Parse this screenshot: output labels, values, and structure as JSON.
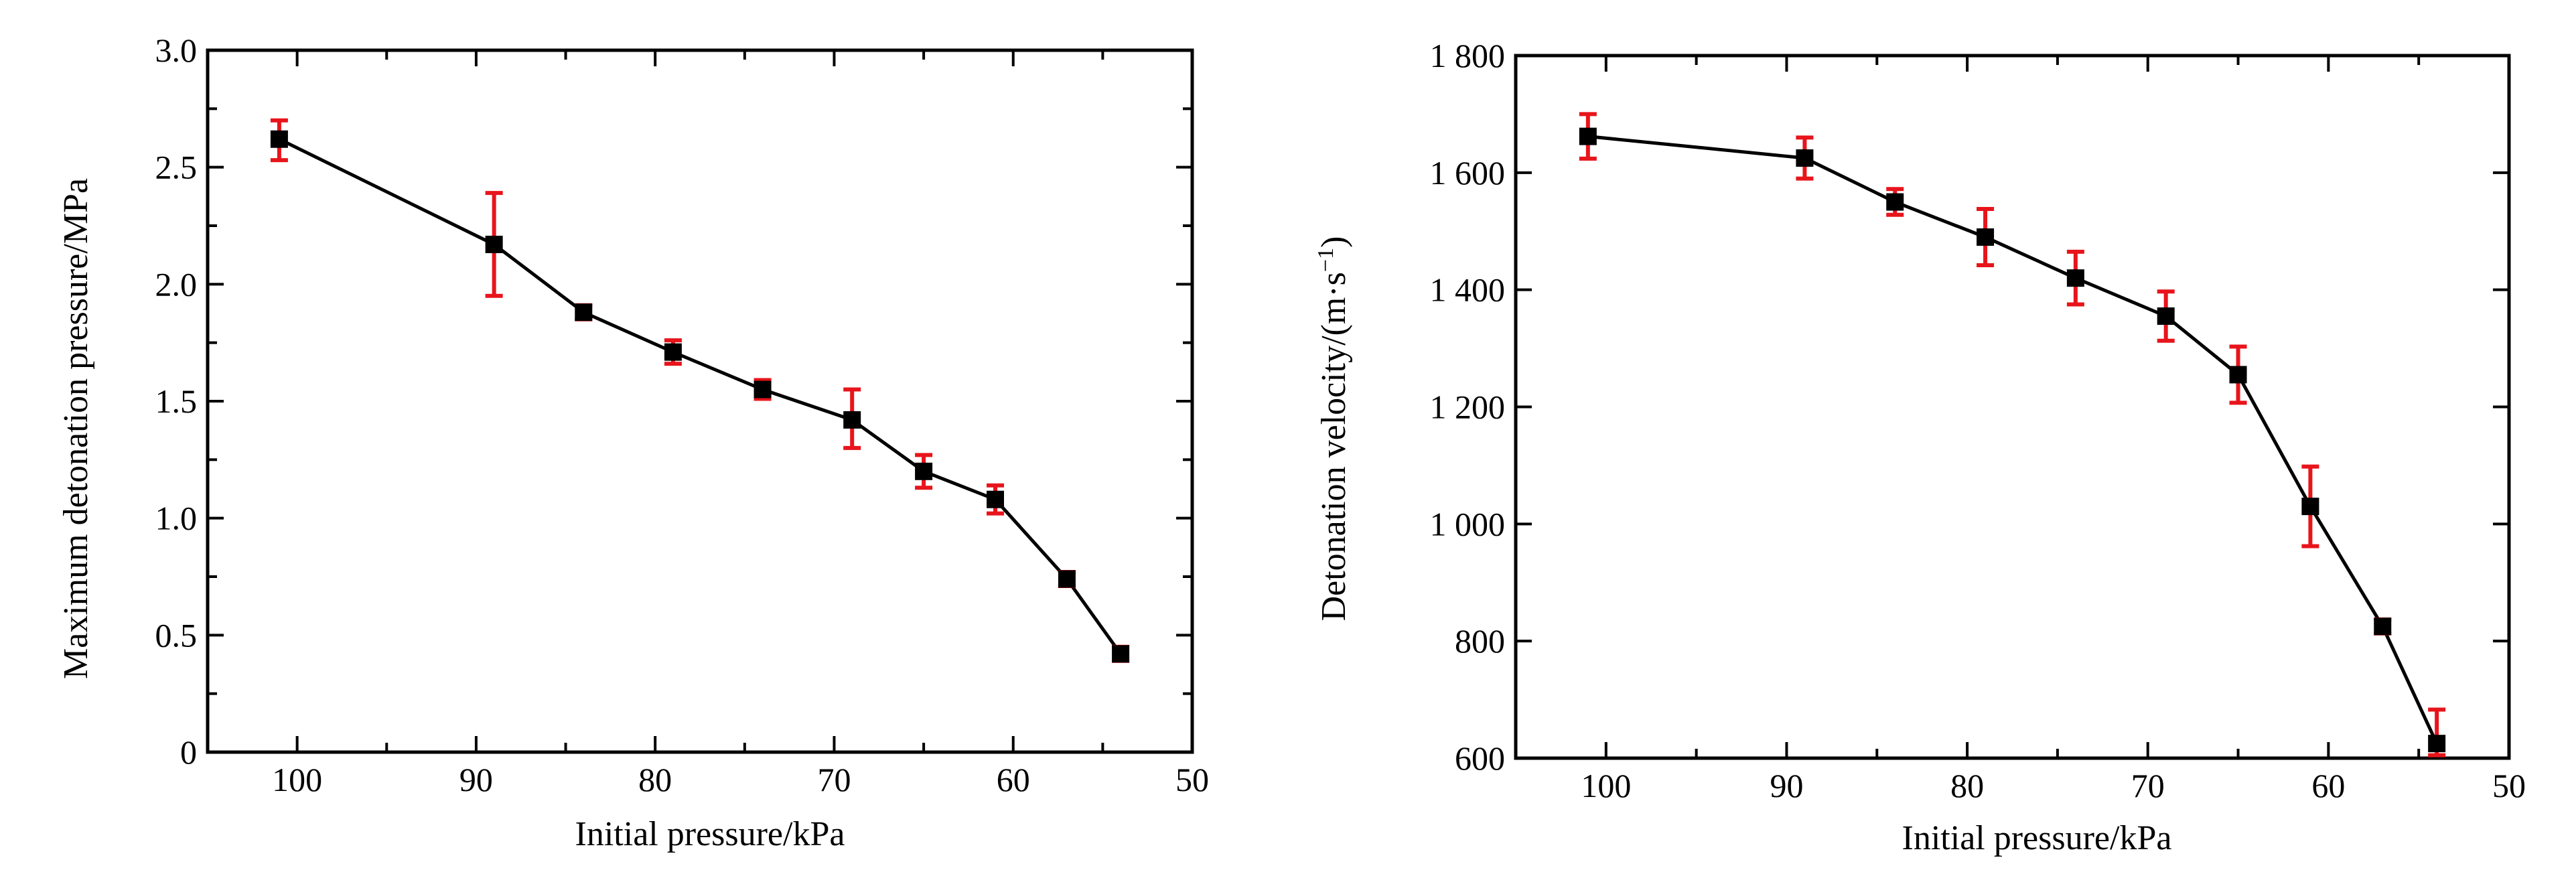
{
  "colors": {
    "errorbar": "#e8141b",
    "series": "#000000"
  },
  "chart_data": [
    {
      "type": "line",
      "xlabel": "Initial pressure/kPa",
      "ylabel": "Maximum detonation pressure/MPa",
      "xlim": [
        105,
        50
      ],
      "ylim": [
        0,
        3.0
      ],
      "x_reversed": true,
      "xticks": [
        100,
        90,
        80,
        70,
        60,
        50
      ],
      "xtick_labels": [
        "100",
        "90",
        "80",
        "70",
        "60",
        "50"
      ],
      "yticks": [
        0,
        0.5,
        1.0,
        1.5,
        2.0,
        2.5,
        3.0
      ],
      "ytick_labels": [
        "0",
        "0.5",
        "1.0",
        "1.5",
        "2.0",
        "2.5",
        "3.0"
      ],
      "grid": false,
      "series": [
        {
          "x": [
            101,
            89,
            84,
            79,
            74,
            69,
            65,
            61,
            57,
            54
          ],
          "y": [
            2.62,
            2.17,
            1.88,
            1.71,
            1.55,
            1.42,
            1.2,
            1.08,
            0.74,
            0.42
          ],
          "err_low": [
            0.09,
            0.22,
            0.03,
            0.05,
            0.04,
            0.12,
            0.07,
            0.06,
            0.03,
            0.03
          ],
          "err_high": [
            0.08,
            0.22,
            0.03,
            0.05,
            0.04,
            0.13,
            0.07,
            0.06,
            0.03,
            0.03
          ]
        }
      ]
    },
    {
      "type": "line",
      "xlabel": "Initial pressure/kPa",
      "ylabel": "Detonation velocity/(m·s",
      "ylabel_sup": "−1",
      "ylabel_end": ")",
      "xlim": [
        105,
        50
      ],
      "ylim": [
        600,
        1800
      ],
      "x_reversed": true,
      "xticks": [
        100,
        90,
        80,
        70,
        60,
        50
      ],
      "xtick_labels": [
        "100",
        "90",
        "80",
        "70",
        "60",
        "50"
      ],
      "yticks": [
        600,
        800,
        1000,
        1200,
        1400,
        1600,
        1800
      ],
      "ytick_labels": [
        "600",
        "800",
        "1 000",
        "1 200",
        "1 400",
        "1 600",
        "1 800"
      ],
      "grid": false,
      "series": [
        {
          "x": [
            101,
            89,
            84,
            79,
            74,
            69,
            65,
            61,
            57,
            54
          ],
          "y": [
            1662,
            1625,
            1550,
            1490,
            1420,
            1355,
            1255,
            1030,
            825,
            625
          ],
          "err_low": [
            38,
            35,
            22,
            48,
            45,
            42,
            48,
            68,
            12,
            20
          ],
          "err_high": [
            38,
            35,
            22,
            48,
            45,
            42,
            48,
            68,
            12,
            58
          ]
        }
      ]
    }
  ]
}
